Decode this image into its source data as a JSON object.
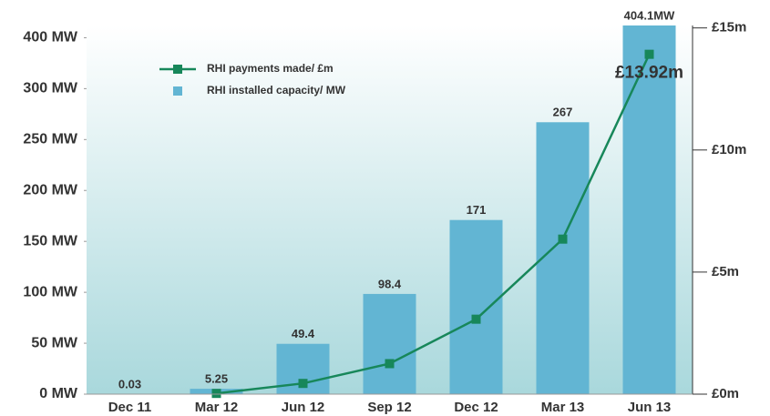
{
  "chart_data": {
    "type": "bar",
    "categories": [
      "Dec 11",
      "Mar 12",
      "Jun 12",
      "Sep 12",
      "Dec 12",
      "Mar 13",
      "Jun 13"
    ],
    "series": [
      {
        "name": "RHI installed capacity/ MW",
        "type": "bar",
        "color": "#62b5d3",
        "values": [
          0.03,
          5.25,
          49.4,
          98.4,
          171,
          267,
          404.1
        ],
        "value_labels": [
          "0.03",
          "5.25",
          "49.4",
          "98.4",
          "171",
          "267",
          "404.1MW"
        ]
      },
      {
        "name": "RHI payments made/ £m",
        "type": "line",
        "axis": "y2",
        "color": "#17875a",
        "values": [
          null,
          0.03,
          0.44,
          1.25,
          3.07,
          6.35,
          13.92
        ],
        "value_labels": [
          null,
          null,
          null,
          null,
          null,
          null,
          "£13.92m"
        ]
      }
    ],
    "ylim": [
      0,
      362
    ],
    "yticks": [
      {
        "value": 0,
        "label": "0 MW"
      },
      {
        "value": 50,
        "label": "50 MW"
      },
      {
        "value": 100,
        "label": "100 MW"
      },
      {
        "value": 150,
        "label": "150 MW"
      },
      {
        "value": 200,
        "label": "200 MW"
      },
      {
        "value": 250,
        "label": "250 MW"
      },
      {
        "value": 300,
        "label": "300 MW"
      },
      {
        "value": 350,
        "label": "400 MW"
      }
    ],
    "y2lim": [
      0,
      15.1
    ],
    "y2ticks": [
      {
        "value": 0,
        "label": "£0m"
      },
      {
        "value": 5,
        "label": "£5m"
      },
      {
        "value": 10,
        "label": "£10m"
      },
      {
        "value": 15,
        "label": "£15m"
      }
    ],
    "legend": "upper left"
  }
}
